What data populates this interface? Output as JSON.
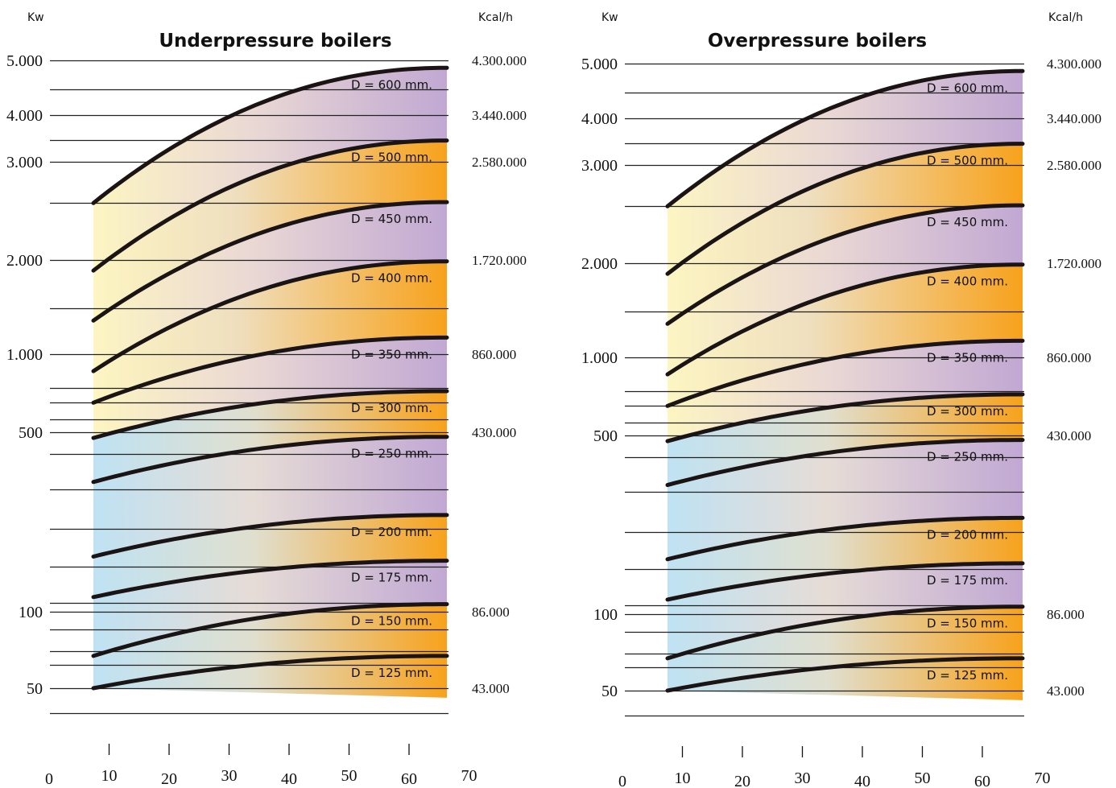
{
  "chart_data": [
    {
      "type": "area",
      "title": "Underpressure boilers",
      "left_unit": "Kw",
      "right_unit": "Kcal/h",
      "y_ticks_kw": [
        "5.000",
        "4.000",
        "3.000",
        "2.000",
        "1.000",
        "500",
        "100",
        "50"
      ],
      "y_ticks_kcal": [
        "4.300.000",
        "3.440.000",
        "2.580.000",
        "1.720.000",
        "860.000",
        "430.000",
        "86.000",
        "43.000"
      ],
      "x_ticks": [
        "0",
        "10",
        "20",
        "30",
        "40",
        "50",
        "60",
        "70"
      ],
      "series": [
        {
          "name": "D = 125 mm.",
          "band_color": "orange",
          "start_kw": 50,
          "end_kw": 67
        },
        {
          "name": "D = 150 mm.",
          "band_color": "orange",
          "start_kw": 67,
          "end_kw": 107
        },
        {
          "name": "D = 175 mm.",
          "band_color": "purple",
          "start_kw": 114,
          "end_kw": 158
        },
        {
          "name": "D = 200 mm.",
          "band_color": "orange",
          "start_kw": 164,
          "end_kw": 238
        },
        {
          "name": "D = 250 mm.",
          "band_color": "purple",
          "start_kw": 320,
          "end_kw": 480
        },
        {
          "name": "D = 300 mm.",
          "band_color": "orange",
          "start_kw": 475,
          "end_kw": 720
        },
        {
          "name": "D = 350 mm.",
          "band_color": "purple",
          "start_kw": 650,
          "end_kw": 1130
        },
        {
          "name": "D = 400 mm.",
          "band_color": "orange",
          "start_kw": 860,
          "end_kw": 1980
        },
        {
          "name": "D = 450 mm.",
          "band_color": "purple",
          "start_kw": 1280,
          "end_kw": 2540
        },
        {
          "name": "D = 500 mm.",
          "band_color": "orange",
          "start_kw": 1850,
          "end_kw": 3420
        },
        {
          "name": "D = 600 mm.",
          "band_color": "purple",
          "start_kw": 2530,
          "end_kw": 4850
        }
      ]
    },
    {
      "type": "area",
      "title": "Overpressure boilers",
      "left_unit": "Kw",
      "right_unit": "Kcal/h",
      "y_ticks_kw": [
        "5.000",
        "4.000",
        "3.000",
        "2.000",
        "1.000",
        "500",
        "100",
        "50"
      ],
      "y_ticks_kcal": [
        "4.300.000",
        "3.440.000",
        "2.580.000",
        "1.720.000",
        "860.000",
        "430.000",
        "86.000",
        "43.000"
      ],
      "x_ticks": [
        "0",
        "10",
        "20",
        "30",
        "40",
        "50",
        "60",
        "70"
      ],
      "series": [
        {
          "name": "D = 125 mm.",
          "band_color": "orange",
          "start_kw": 50,
          "end_kw": 67
        },
        {
          "name": "D = 150 mm.",
          "band_color": "orange",
          "start_kw": 67,
          "end_kw": 107
        },
        {
          "name": "D = 175 mm.",
          "band_color": "purple",
          "start_kw": 114,
          "end_kw": 158
        },
        {
          "name": "D = 200 mm.",
          "band_color": "orange",
          "start_kw": 164,
          "end_kw": 238
        },
        {
          "name": "D = 250 mm.",
          "band_color": "purple",
          "start_kw": 320,
          "end_kw": 480
        },
        {
          "name": "D = 300 mm.",
          "band_color": "orange",
          "start_kw": 475,
          "end_kw": 720
        },
        {
          "name": "D = 350 mm.",
          "band_color": "purple",
          "start_kw": 650,
          "end_kw": 1130
        },
        {
          "name": "D = 400 mm.",
          "band_color": "orange",
          "start_kw": 860,
          "end_kw": 1980
        },
        {
          "name": "D = 450 mm.",
          "band_color": "purple",
          "start_kw": 1280,
          "end_kw": 2540
        },
        {
          "name": "D = 500 mm.",
          "band_color": "orange",
          "start_kw": 1850,
          "end_kw": 3420
        },
        {
          "name": "D = 600 mm.",
          "band_color": "purple",
          "start_kw": 2530,
          "end_kw": 4850
        }
      ]
    }
  ],
  "colors": {
    "curve": "#1a1414",
    "gridline": "#222222",
    "orange": "#f7a21c",
    "purple": "#c1a8d3",
    "light_yellow": "#fdf5c2",
    "light_blue": "#bfe2f3"
  }
}
